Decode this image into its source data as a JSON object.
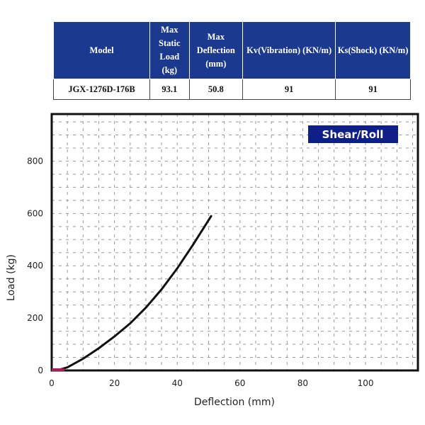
{
  "table": {
    "headers": [
      "Model",
      "Max Static Load (kg)",
      "Max Deflection (mm)",
      "Kv(Vibration) (KN/m)",
      "Ks(Shock) (KN/m)"
    ],
    "rows": [
      [
        "JGX-1276D-176B",
        "93.1",
        "50.8",
        "91",
        "91"
      ]
    ],
    "header_color": "#1b3a8f"
  },
  "chart_data": {
    "type": "line",
    "title": "",
    "legend_label": "Shear/Roll",
    "legend_placement": "top-right",
    "legend_color": "#0f1f8a",
    "xlabel": "Deflection (mm)",
    "ylabel": "Load (kg)",
    "xlim": [
      0,
      116.7
    ],
    "ylim": [
      0,
      980
    ],
    "x_ticks": [
      0,
      20,
      40,
      60,
      80,
      100
    ],
    "y_ticks": [
      0,
      200,
      400,
      600,
      800
    ],
    "grid": true,
    "series": [
      {
        "color": "#111111",
        "x": [
          0,
          3,
          5,
          10,
          15,
          20,
          25,
          30,
          35,
          40,
          45,
          50.8
        ],
        "y": [
          0,
          5,
          12,
          45,
          85,
          130,
          180,
          240,
          310,
          390,
          480,
          590
        ]
      }
    ]
  }
}
